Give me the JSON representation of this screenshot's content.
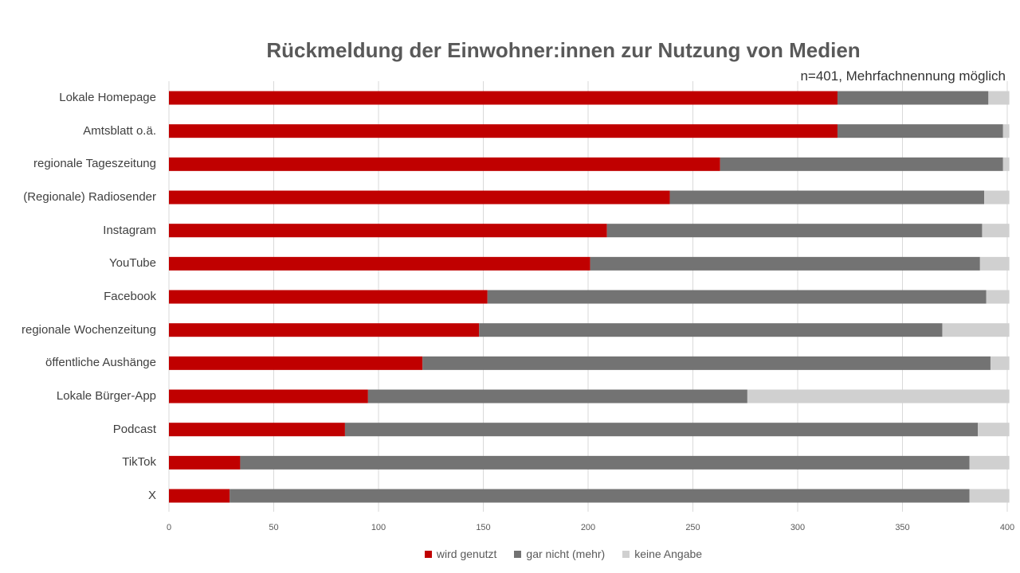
{
  "chart_data": {
    "type": "bar",
    "orientation": "horizontal",
    "stacked": true,
    "title": "Rückmeldung der Einwohner:innen zur Nutzung von Medien",
    "subtitle": "n=401, Mehrfachnennung möglich",
    "categories": [
      "Lokale Homepage",
      "Amtsblatt o.ä.",
      "regionale Tageszeitung",
      "(Regionale) Radiosender",
      "Instagram",
      "YouTube",
      "Facebook",
      "regionale Wochenzeitung",
      "öffentliche Aushänge",
      "Lokale Bürger-App",
      "Podcast",
      "TikTok",
      "X"
    ],
    "series": [
      {
        "name": "wird genutzt",
        "color": "#c00000",
        "values": [
          319,
          319,
          263,
          239,
          209,
          201,
          152,
          148,
          121,
          95,
          84,
          34,
          29
        ]
      },
      {
        "name": "gar nicht (mehr)",
        "color": "#737373",
        "values": [
          72,
          79,
          135,
          150,
          179,
          186,
          238,
          221,
          271,
          181,
          302,
          348,
          353
        ]
      },
      {
        "name": "keine Angabe",
        "color": "#d0d0d0",
        "values": [
          10,
          3,
          3,
          12,
          13,
          14,
          11,
          32,
          9,
          125,
          15,
          19,
          19
        ]
      }
    ],
    "xlim": [
      0,
      400
    ],
    "xticks": [
      0,
      50,
      100,
      150,
      200,
      250,
      300,
      350,
      400
    ],
    "grid": true,
    "legend_position": "bottom"
  }
}
